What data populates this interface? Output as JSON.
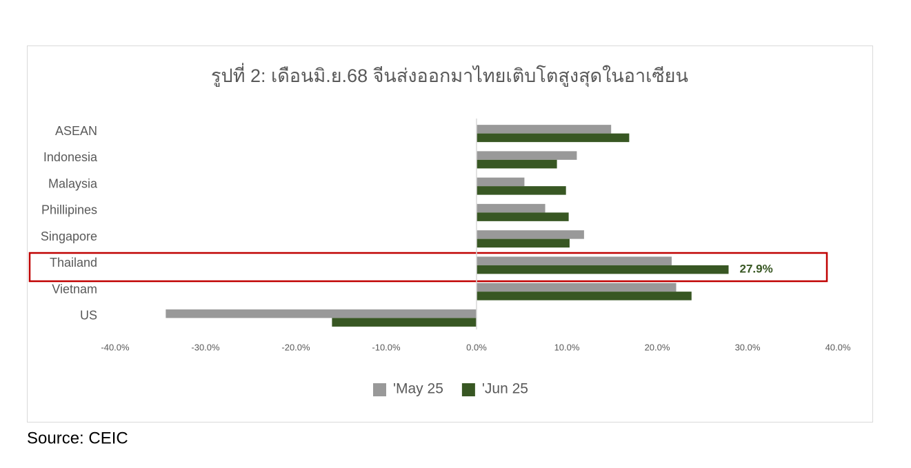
{
  "chart_data": {
    "type": "barh",
    "title": "รูปที่ 2: เดือนมิ.ย.68 จีนส่งออกมาไทยเติบโตสูงสุดในอาเซียน",
    "categories": [
      "ASEAN",
      "Indonesia",
      "Malaysia",
      "Phillipines",
      "Singapore",
      "Thailand",
      "Vietnam",
      "US"
    ],
    "series": [
      {
        "name": "'May 25",
        "color": "#999999",
        "values": [
          14.9,
          11.1,
          5.3,
          7.6,
          11.9,
          21.6,
          22.1,
          -34.4
        ]
      },
      {
        "name": "'Jun 25",
        "color": "#385723",
        "values": [
          16.9,
          8.9,
          9.9,
          10.2,
          10.3,
          27.9,
          23.8,
          -16.0
        ],
        "value_labels": [
          null,
          null,
          null,
          null,
          null,
          "27.9%",
          null,
          null
        ]
      }
    ],
    "xlim": [
      -40,
      40
    ],
    "xticks": [
      {
        "value": -40,
        "label": "-40.0%"
      },
      {
        "value": -30,
        "label": "-30.0%"
      },
      {
        "value": -20,
        "label": "-20.0%"
      },
      {
        "value": -10,
        "label": "-10.0%"
      },
      {
        "value": 0,
        "label": "0.0%"
      },
      {
        "value": 10,
        "label": "10.0%"
      },
      {
        "value": 20,
        "label": "20.0%"
      },
      {
        "value": 30,
        "label": "30.0%"
      },
      {
        "value": 40,
        "label": "40.0%"
      }
    ],
    "grid": false,
    "legend": "bottom",
    "source": "Source: CEIC"
  }
}
